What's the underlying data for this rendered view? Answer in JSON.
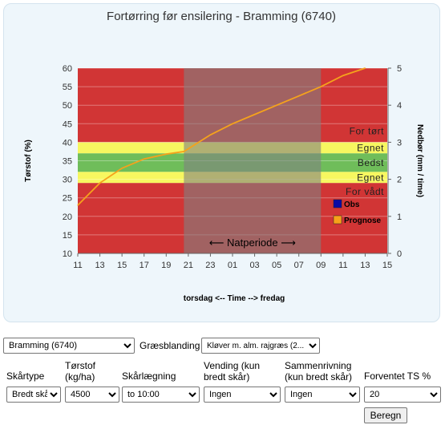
{
  "chart_data": {
    "type": "line",
    "title": "Fortørring før ensilering - Bramming (6740)",
    "ylabel_left": "Tørstof (%)",
    "ylabel_right": "Nedbør (mm / time)",
    "xlabel": "torsdag  <-- Time -->  fredag",
    "x_tick_labels": [
      "11",
      "13",
      "15",
      "17",
      "19",
      "21",
      "23",
      "01",
      "03",
      "05",
      "07",
      "09",
      "11",
      "13",
      "15"
    ],
    "y_left_range": [
      10,
      60
    ],
    "y_left_ticks": [
      10,
      15,
      20,
      25,
      30,
      35,
      40,
      45,
      50,
      55,
      60
    ],
    "y_right_range": [
      0,
      5
    ],
    "y_right_ticks": [
      0,
      1,
      2,
      3,
      4,
      5
    ],
    "x_range": [
      11,
      39
    ],
    "bands": [
      {
        "name": "For tørt",
        "y_from": 40,
        "y_to": 60,
        "color": "#d13535"
      },
      {
        "name": "Egnet",
        "y_from": 37,
        "y_to": 40,
        "color": "#f7f760"
      },
      {
        "name": "Bedst",
        "y_from": 32,
        "y_to": 37,
        "color": "#6fbd5a"
      },
      {
        "name": "Egnet",
        "y_from": 29,
        "y_to": 32,
        "color": "#f7f760"
      },
      {
        "name": "For vådt",
        "y_from": 10,
        "y_to": 29,
        "color": "#d13535"
      }
    ],
    "night_period": {
      "label": "⟵ Natperiode ⟶",
      "x_from": 20.6,
      "x_to": 33,
      "color": "rgba(128,128,128,0.6)"
    },
    "series": [
      {
        "name": "Prognose",
        "color": "#f5a21c",
        "x": [
          11,
          13,
          15,
          17,
          19,
          20.6,
          23,
          25,
          27,
          29,
          31,
          33,
          35,
          37
        ],
        "values": [
          23,
          29,
          33,
          35.5,
          36.8,
          37.5,
          42,
          45,
          47.5,
          50,
          52.5,
          55,
          58,
          60
        ]
      }
    ],
    "legend": [
      {
        "name": "Obs",
        "color": "#0a0aa6"
      },
      {
        "name": "Prognose",
        "color": "#f7a11a"
      }
    ],
    "grid": true
  },
  "controls": {
    "location_select": "Bramming (6740)",
    "grass_label": "Græsblanding",
    "grass_select": "Kløver m. alm. rajgræs (2...",
    "fields": [
      {
        "label": "Skårtype",
        "value": "Bredt skå"
      },
      {
        "label": "Tørstof\n(kg/ha)",
        "value": "4500"
      },
      {
        "label": "Skårlægning",
        "value": "to 10:00"
      },
      {
        "label": "Vending (kun\nbredt skår)",
        "value": "Ingen"
      },
      {
        "label": "Sammenrivning\n(kun bredt skår)",
        "value": "Ingen"
      },
      {
        "label": "Forventet TS %",
        "value": "20"
      }
    ],
    "compute_button": "Beregn"
  }
}
